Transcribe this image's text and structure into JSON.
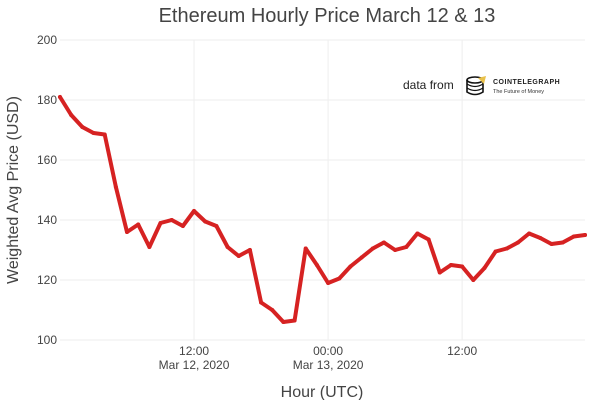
{
  "chart_data": {
    "type": "line",
    "title": "Ethereum Hourly Price March 12 & 13",
    "xlabel": "Hour (UTC)",
    "ylabel": "Weighted Avg Price (USD)",
    "ylim": [
      100,
      200
    ],
    "yticks": [
      100,
      120,
      140,
      160,
      180,
      200
    ],
    "xticks": [
      {
        "x": "2020-03-12T12:00",
        "line1": "12:00",
        "line2": "Mar 12, 2020"
      },
      {
        "x": "2020-03-13T00:00",
        "line1": "00:00",
        "line2": "Mar 13, 2020"
      },
      {
        "x": "2020-03-13T12:00",
        "line1": "12:00",
        "line2": ""
      }
    ],
    "x": [
      "2020-03-12T00:00",
      "2020-03-12T01:00",
      "2020-03-12T02:00",
      "2020-03-12T03:00",
      "2020-03-12T04:00",
      "2020-03-12T05:00",
      "2020-03-12T06:00",
      "2020-03-12T07:00",
      "2020-03-12T08:00",
      "2020-03-12T09:00",
      "2020-03-12T10:00",
      "2020-03-12T11:00",
      "2020-03-12T12:00",
      "2020-03-12T13:00",
      "2020-03-12T14:00",
      "2020-03-12T15:00",
      "2020-03-12T16:00",
      "2020-03-12T17:00",
      "2020-03-12T18:00",
      "2020-03-12T19:00",
      "2020-03-12T20:00",
      "2020-03-12T21:00",
      "2020-03-12T22:00",
      "2020-03-12T23:00",
      "2020-03-13T00:00",
      "2020-03-13T01:00",
      "2020-03-13T02:00",
      "2020-03-13T03:00",
      "2020-03-13T04:00",
      "2020-03-13T05:00",
      "2020-03-13T06:00",
      "2020-03-13T07:00",
      "2020-03-13T08:00",
      "2020-03-13T09:00",
      "2020-03-13T10:00",
      "2020-03-13T11:00",
      "2020-03-13T12:00",
      "2020-03-13T13:00",
      "2020-03-13T14:00",
      "2020-03-13T15:00",
      "2020-03-13T16:00",
      "2020-03-13T17:00",
      "2020-03-13T18:00",
      "2020-03-13T19:00",
      "2020-03-13T20:00",
      "2020-03-13T21:00",
      "2020-03-13T22:00",
      "2020-03-13T23:00"
    ],
    "series": [
      {
        "color": "#d62222",
        "values": [
          181,
          175,
          171,
          169,
          168.5,
          151,
          136,
          138.5,
          131,
          139,
          140,
          138,
          143,
          139.5,
          138,
          131,
          128,
          130,
          112.5,
          110,
          106,
          106.5,
          130.5,
          125,
          119,
          120.5,
          124.5,
          127.5,
          130.5,
          132.5,
          130,
          131,
          135.5,
          133.5,
          122.5,
          125,
          124.5,
          120,
          124,
          129.5,
          130.5,
          132.5,
          135.5,
          134,
          132,
          132.5,
          134.5,
          135
        ]
      }
    ],
    "grid": true,
    "legend": "none"
  },
  "credit": {
    "prefix": "data from",
    "brand": "COINTELEGRAPH",
    "tagline": "The Future of Money",
    "logo_icon": "coin-stack-icon"
  }
}
